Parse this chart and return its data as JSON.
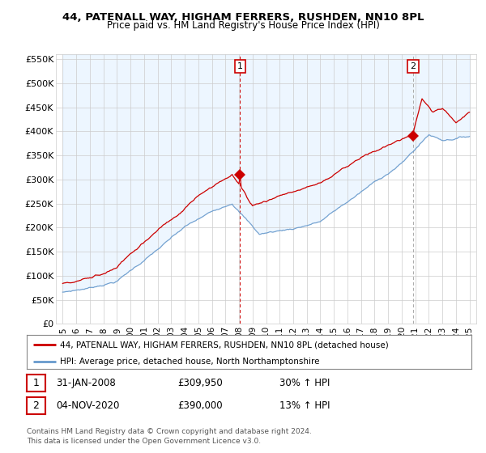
{
  "title1": "44, PATENALL WAY, HIGHAM FERRERS, RUSHDEN, NN10 8PL",
  "title2": "Price paid vs. HM Land Registry's House Price Index (HPI)",
  "ylabel_ticks": [
    "£0",
    "£50K",
    "£100K",
    "£150K",
    "£200K",
    "£250K",
    "£300K",
    "£350K",
    "£400K",
    "£450K",
    "£500K",
    "£550K"
  ],
  "ytick_vals": [
    0,
    50000,
    100000,
    150000,
    200000,
    250000,
    300000,
    350000,
    400000,
    450000,
    500000,
    550000
  ],
  "xlim": [
    1994.5,
    2025.5
  ],
  "ylim": [
    0,
    560000
  ],
  "sale1_x": 2008.08,
  "sale1_y": 309950,
  "sale2_x": 2020.84,
  "sale2_y": 390000,
  "vline1_x": 2008.08,
  "vline2_x": 2020.84,
  "legend_line1": "44, PATENALL WAY, HIGHAM FERRERS, RUSHDEN, NN10 8PL (detached house)",
  "legend_line2": "HPI: Average price, detached house, North Northamptonshire",
  "annotation1_num": "1",
  "annotation1_date": "31-JAN-2008",
  "annotation1_price": "£309,950",
  "annotation1_hpi": "30% ↑ HPI",
  "annotation2_num": "2",
  "annotation2_date": "04-NOV-2020",
  "annotation2_price": "£390,000",
  "annotation2_hpi": "13% ↑ HPI",
  "footer": "Contains HM Land Registry data © Crown copyright and database right 2024.\nThis data is licensed under the Open Government Licence v3.0.",
  "red_color": "#cc0000",
  "blue_color": "#6699cc",
  "fill_color": "#ddeeff",
  "bg_color": "#ffffff",
  "grid_color": "#cccccc"
}
